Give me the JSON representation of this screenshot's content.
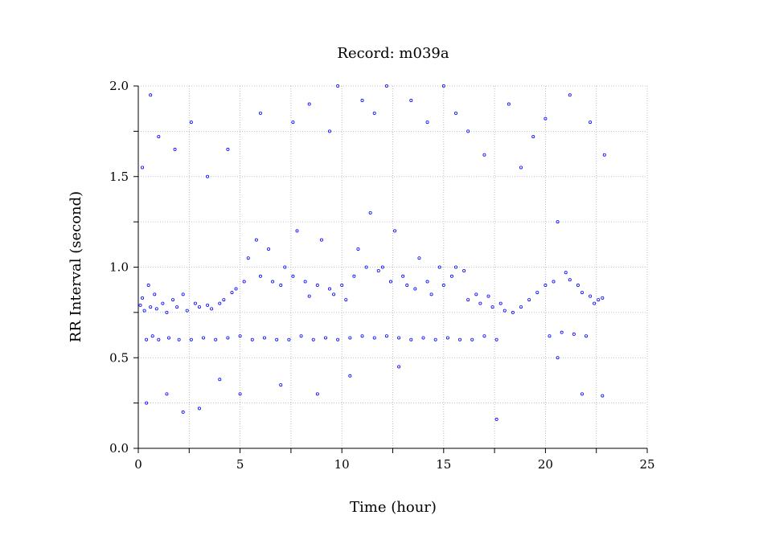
{
  "chart_data": {
    "type": "scatter",
    "title": "Record:  m039a",
    "xlabel": "Time (hour)",
    "ylabel": "RR Interval (second)",
    "xlim": [
      0,
      25
    ],
    "ylim": [
      0.0,
      2.0
    ],
    "xticks": [
      0,
      5,
      10,
      15,
      20,
      25
    ],
    "xtick_labels": [
      "0",
      "5",
      "10",
      "15",
      "20",
      "25"
    ],
    "yticks": [
      0.0,
      0.5,
      1.0,
      1.5,
      2.0
    ],
    "ytick_labels": [
      "0.0",
      "0.5",
      "1.0",
      "1.5",
      "2.0"
    ],
    "grid": true,
    "marker": "open-circle",
    "color": "#0000ff",
    "series": [
      {
        "points": [
          [
            0.1,
            0.79
          ],
          [
            0.2,
            0.83
          ],
          [
            0.3,
            0.76
          ],
          [
            0.4,
            0.6
          ],
          [
            0.5,
            0.9
          ],
          [
            0.6,
            0.78
          ],
          [
            0.7,
            0.62
          ],
          [
            0.8,
            0.85
          ],
          [
            0.9,
            0.77
          ],
          [
            1.0,
            0.6
          ],
          [
            1.2,
            0.8
          ],
          [
            1.4,
            0.75
          ],
          [
            1.5,
            0.61
          ],
          [
            1.7,
            0.82
          ],
          [
            1.9,
            0.78
          ],
          [
            2.0,
            0.6
          ],
          [
            2.2,
            0.85
          ],
          [
            2.4,
            0.76
          ],
          [
            2.6,
            0.6
          ],
          [
            2.8,
            0.8
          ],
          [
            3.0,
            0.78
          ],
          [
            3.2,
            0.61
          ],
          [
            3.4,
            0.79
          ],
          [
            3.6,
            0.77
          ],
          [
            3.8,
            0.6
          ],
          [
            4.0,
            0.8
          ],
          [
            4.2,
            0.82
          ],
          [
            4.4,
            0.61
          ],
          [
            4.6,
            0.86
          ],
          [
            4.8,
            0.88
          ],
          [
            5.0,
            0.62
          ],
          [
            5.2,
            0.92
          ],
          [
            5.4,
            1.05
          ],
          [
            5.6,
            0.6
          ],
          [
            5.8,
            1.15
          ],
          [
            6.0,
            0.95
          ],
          [
            6.2,
            0.61
          ],
          [
            6.4,
            1.1
          ],
          [
            6.6,
            0.92
          ],
          [
            6.8,
            0.6
          ],
          [
            7.0,
            0.9
          ],
          [
            7.2,
            1.0
          ],
          [
            7.4,
            0.6
          ],
          [
            7.6,
            0.95
          ],
          [
            7.8,
            1.2
          ],
          [
            8.0,
            0.62
          ],
          [
            8.2,
            0.92
          ],
          [
            8.4,
            0.84
          ],
          [
            8.6,
            0.6
          ],
          [
            8.8,
            0.9
          ],
          [
            9.0,
            1.15
          ],
          [
            9.2,
            0.61
          ],
          [
            9.4,
            0.88
          ],
          [
            9.6,
            0.85
          ],
          [
            9.8,
            0.6
          ],
          [
            10.0,
            0.9
          ],
          [
            10.2,
            0.82
          ],
          [
            10.4,
            0.61
          ],
          [
            10.6,
            0.95
          ],
          [
            10.8,
            1.1
          ],
          [
            11.0,
            0.62
          ],
          [
            11.2,
            1.0
          ],
          [
            11.4,
            1.3
          ],
          [
            11.6,
            0.61
          ],
          [
            11.8,
            0.98
          ],
          [
            12.0,
            1.0
          ],
          [
            12.2,
            0.62
          ],
          [
            12.4,
            0.92
          ],
          [
            12.6,
            1.2
          ],
          [
            12.8,
            0.61
          ],
          [
            13.0,
            0.95
          ],
          [
            13.2,
            0.9
          ],
          [
            13.4,
            0.6
          ],
          [
            13.6,
            0.88
          ],
          [
            13.8,
            1.05
          ],
          [
            14.0,
            0.61
          ],
          [
            14.2,
            0.92
          ],
          [
            14.4,
            0.85
          ],
          [
            14.6,
            0.6
          ],
          [
            14.8,
            1.0
          ],
          [
            15.0,
            0.9
          ],
          [
            15.2,
            0.61
          ],
          [
            15.4,
            0.95
          ],
          [
            15.6,
            1.0
          ],
          [
            15.8,
            0.6
          ],
          [
            16.0,
            0.98
          ],
          [
            16.2,
            0.82
          ],
          [
            16.4,
            0.6
          ],
          [
            16.6,
            0.85
          ],
          [
            16.8,
            0.8
          ],
          [
            17.0,
            0.62
          ],
          [
            17.2,
            0.84
          ],
          [
            17.4,
            0.78
          ],
          [
            17.6,
            0.6
          ],
          [
            17.8,
            0.8
          ],
          [
            18.0,
            0.76
          ],
          [
            18.4,
            0.75
          ],
          [
            18.8,
            0.78
          ],
          [
            19.2,
            0.82
          ],
          [
            19.6,
            0.86
          ],
          [
            20.0,
            0.9
          ],
          [
            20.2,
            0.62
          ],
          [
            20.4,
            0.92
          ],
          [
            20.6,
            1.25
          ],
          [
            20.8,
            0.64
          ],
          [
            21.0,
            0.97
          ],
          [
            21.2,
            0.93
          ],
          [
            21.4,
            0.63
          ],
          [
            21.6,
            0.9
          ],
          [
            21.8,
            0.86
          ],
          [
            22.0,
            0.62
          ],
          [
            22.2,
            0.84
          ],
          [
            22.4,
            0.8
          ],
          [
            22.6,
            0.82
          ],
          [
            22.8,
            0.83
          ],
          [
            0.2,
            1.55
          ],
          [
            0.4,
            0.25
          ],
          [
            0.6,
            1.95
          ],
          [
            1.0,
            1.72
          ],
          [
            1.4,
            0.3
          ],
          [
            1.8,
            1.65
          ],
          [
            2.2,
            0.2
          ],
          [
            2.6,
            1.8
          ],
          [
            3.0,
            0.22
          ],
          [
            3.4,
            1.5
          ],
          [
            4.0,
            0.38
          ],
          [
            4.4,
            1.65
          ],
          [
            5.0,
            0.3
          ],
          [
            6.0,
            1.85
          ],
          [
            7.0,
            0.35
          ],
          [
            7.6,
            1.8
          ],
          [
            8.4,
            1.9
          ],
          [
            8.8,
            0.3
          ],
          [
            9.4,
            1.75
          ],
          [
            9.8,
            2.0
          ],
          [
            10.4,
            0.4
          ],
          [
            11.0,
            1.92
          ],
          [
            11.6,
            1.85
          ],
          [
            12.2,
            2.0
          ],
          [
            12.8,
            0.45
          ],
          [
            13.4,
            1.92
          ],
          [
            14.2,
            1.8
          ],
          [
            15.0,
            2.0
          ],
          [
            15.6,
            1.85
          ],
          [
            16.2,
            1.75
          ],
          [
            17.0,
            1.62
          ],
          [
            17.6,
            0.16
          ],
          [
            18.2,
            1.9
          ],
          [
            18.8,
            1.55
          ],
          [
            19.4,
            1.72
          ],
          [
            20.0,
            1.82
          ],
          [
            20.6,
            0.5
          ],
          [
            21.2,
            1.95
          ],
          [
            21.8,
            0.3
          ],
          [
            22.2,
            1.8
          ],
          [
            22.8,
            0.29
          ],
          [
            22.9,
            1.62
          ]
        ]
      }
    ]
  }
}
